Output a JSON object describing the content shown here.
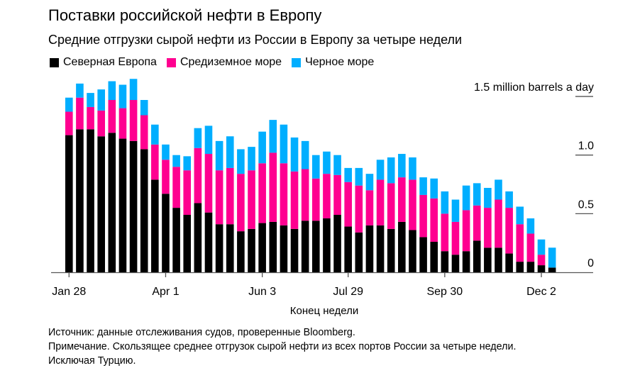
{
  "title": "Поставки российской нефти в Европу",
  "subtitle": "Средние отгрузки сырой нефти из России в Европу за четыре недели",
  "source": "Источник: данные отслеживания судов, проверенные Bloomberg.",
  "note": "Примечание. Скользящее среднее отгрузок сырой нефти из всех портов России за четыре недели.",
  "note2": "Исключая Турцию.",
  "chart_data": {
    "type": "bar",
    "stacked": true,
    "title": "Поставки российской нефти в Европу",
    "xlabel": "Конец недели",
    "ylabel": "1.5 million barrels a day",
    "ylim": [
      0,
      1.5
    ],
    "yticks": [
      {
        "value": 0,
        "label": "0"
      },
      {
        "value": 0.5,
        "label": "0.5"
      },
      {
        "value": 1.0,
        "label": "1.0"
      },
      {
        "value": 1.5,
        "label": "1.5 million barrels a day"
      }
    ],
    "xticks": [
      "Jan 28",
      "Apr 1",
      "Jun 3",
      "Jul 29",
      "Sep 30",
      "Dec 2"
    ],
    "grid": false,
    "legend_position": "top-left",
    "categories": [
      "Jan 28",
      "Feb 4",
      "Feb 11",
      "Feb 18",
      "Feb 25",
      "Mar 4",
      "Mar 11",
      "Mar 18",
      "Mar 25",
      "Apr 1",
      "Apr 8",
      "Apr 15",
      "Apr 22",
      "Apr 29",
      "May 6",
      "May 13",
      "May 20",
      "May 27",
      "Jun 3",
      "Jun 10",
      "Jun 17",
      "Jun 24",
      "Jul 1",
      "Jul 8",
      "Jul 15",
      "Jul 22",
      "Jul 29",
      "Aug 5",
      "Aug 12",
      "Aug 19",
      "Aug 26",
      "Sep 2",
      "Sep 9",
      "Sep 16",
      "Sep 23",
      "Sep 30",
      "Oct 7",
      "Oct 14",
      "Oct 21",
      "Oct 28",
      "Nov 4",
      "Nov 11",
      "Nov 18",
      "Nov 25",
      "Dec 2",
      "Dec 9"
    ],
    "series": [
      {
        "name": "Северная Европа",
        "color": "#000000",
        "values": [
          1.17,
          1.22,
          1.22,
          1.16,
          1.19,
          1.14,
          1.12,
          1.05,
          0.79,
          0.67,
          0.55,
          0.49,
          0.59,
          0.51,
          0.41,
          0.41,
          0.35,
          0.37,
          0.42,
          0.43,
          0.4,
          0.37,
          0.44,
          0.44,
          0.46,
          0.49,
          0.39,
          0.34,
          0.4,
          0.4,
          0.37,
          0.43,
          0.36,
          0.3,
          0.26,
          0.18,
          0.15,
          0.18,
          0.27,
          0.21,
          0.21,
          0.16,
          0.09,
          0.09,
          0.06,
          0.04
        ]
      },
      {
        "name": "Средиземное море",
        "color": "#ff0090",
        "values": [
          0.2,
          0.27,
          0.19,
          0.22,
          0.28,
          0.26,
          0.35,
          0.29,
          0.3,
          0.29,
          0.35,
          0.38,
          0.47,
          0.5,
          0.46,
          0.48,
          0.49,
          0.5,
          0.51,
          0.59,
          0.53,
          0.49,
          0.44,
          0.36,
          0.38,
          0.34,
          0.38,
          0.4,
          0.3,
          0.39,
          0.39,
          0.38,
          0.43,
          0.36,
          0.37,
          0.32,
          0.28,
          0.35,
          0.3,
          0.34,
          0.41,
          0.39,
          0.32,
          0.24,
          0.09,
          0.0
        ]
      },
      {
        "name": "Черное море",
        "color": "#00aeff",
        "values": [
          0.12,
          0.12,
          0.12,
          0.18,
          0.16,
          0.2,
          0.18,
          0.13,
          0.17,
          0.13,
          0.1,
          0.12,
          0.17,
          0.24,
          0.25,
          0.27,
          0.21,
          0.2,
          0.27,
          0.28,
          0.33,
          0.29,
          0.24,
          0.2,
          0.19,
          0.17,
          0.12,
          0.15,
          0.14,
          0.17,
          0.22,
          0.2,
          0.19,
          0.15,
          0.17,
          0.19,
          0.19,
          0.21,
          0.19,
          0.17,
          0.17,
          0.14,
          0.15,
          0.13,
          0.13,
          0.17
        ]
      }
    ]
  }
}
